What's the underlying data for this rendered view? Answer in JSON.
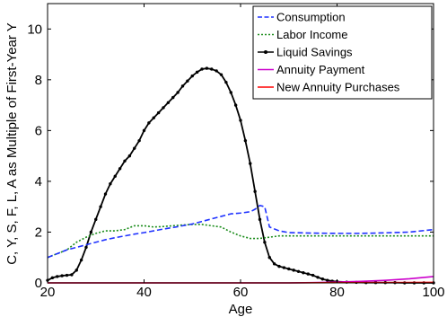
{
  "chart_data": {
    "type": "line",
    "xlabel": "Age",
    "ylabel": "C, Y, S, F, L, A as Multiple of First-Year Y",
    "xlim": [
      20,
      100
    ],
    "ylim": [
      0,
      11
    ],
    "xticks": [
      "20",
      "40",
      "60",
      "80",
      "100"
    ],
    "yticks": [
      "0",
      "2",
      "4",
      "6",
      "8",
      "10"
    ],
    "grid": false,
    "legend_position": "top-right",
    "series": [
      {
        "name": "Consumption",
        "color": "#1f32ff",
        "style": "dashed",
        "x": [
          20,
          22,
          24,
          26,
          28,
          30,
          32,
          34,
          36,
          38,
          40,
          42,
          44,
          46,
          48,
          50,
          52,
          54,
          56,
          58,
          60,
          62,
          63,
          64,
          65,
          66,
          68,
          70,
          75,
          80,
          85,
          90,
          95,
          100
        ],
        "y": [
          1.0,
          1.15,
          1.3,
          1.4,
          1.5,
          1.6,
          1.7,
          1.78,
          1.85,
          1.92,
          1.98,
          2.05,
          2.12,
          2.18,
          2.25,
          2.32,
          2.42,
          2.52,
          2.62,
          2.72,
          2.75,
          2.8,
          2.9,
          3.05,
          3.0,
          2.2,
          2.05,
          1.98,
          1.96,
          1.95,
          1.95,
          1.97,
          2.0,
          2.1
        ]
      },
      {
        "name": "Labor Income",
        "color": "#1a8c1a",
        "style": "dotted",
        "x": [
          20,
          22,
          24,
          26,
          28,
          30,
          32,
          34,
          36,
          38,
          40,
          42,
          44,
          46,
          48,
          50,
          52,
          54,
          56,
          58,
          60,
          62,
          64,
          66,
          68,
          70,
          75,
          80,
          85,
          90,
          95,
          100
        ],
        "y": [
          1.0,
          1.15,
          1.3,
          1.6,
          1.8,
          1.95,
          2.05,
          2.05,
          2.1,
          2.25,
          2.25,
          2.2,
          2.22,
          2.25,
          2.28,
          2.3,
          2.3,
          2.25,
          2.2,
          2.0,
          1.85,
          1.75,
          1.75,
          1.8,
          1.85,
          1.85,
          1.85,
          1.85,
          1.85,
          1.85,
          1.85,
          1.85
        ]
      },
      {
        "name": "Liquid Savings",
        "color": "#000000",
        "style": "solid-dot",
        "x": [
          20,
          21,
          22,
          23,
          24,
          25,
          26,
          27,
          28,
          29,
          30,
          31,
          32,
          33,
          34,
          35,
          36,
          37,
          38,
          39,
          40,
          41,
          42,
          43,
          44,
          45,
          46,
          47,
          48,
          49,
          50,
          51,
          52,
          53,
          54,
          55,
          56,
          57,
          58,
          59,
          60,
          61,
          62,
          63,
          64,
          65,
          66,
          67,
          68,
          69,
          70,
          71,
          72,
          73,
          74,
          75,
          76,
          77,
          78,
          79,
          80,
          82,
          84,
          86,
          88,
          90,
          92,
          94,
          96,
          98,
          100
        ],
        "y": [
          0.1,
          0.2,
          0.25,
          0.28,
          0.3,
          0.32,
          0.5,
          0.9,
          1.4,
          2.0,
          2.5,
          3.0,
          3.5,
          3.9,
          4.2,
          4.5,
          4.8,
          5.0,
          5.3,
          5.6,
          6.0,
          6.3,
          6.5,
          6.7,
          6.9,
          7.1,
          7.3,
          7.5,
          7.75,
          7.95,
          8.15,
          8.3,
          8.42,
          8.45,
          8.42,
          8.35,
          8.2,
          7.9,
          7.5,
          7.0,
          6.4,
          5.6,
          4.7,
          3.6,
          2.5,
          1.6,
          1.0,
          0.75,
          0.65,
          0.6,
          0.55,
          0.5,
          0.45,
          0.4,
          0.35,
          0.3,
          0.22,
          0.15,
          0.1,
          0.07,
          0.05,
          0.03,
          0.02,
          0.01,
          0.01,
          0.01,
          0.01,
          0.0,
          0.0,
          0.0,
          0.0
        ]
      },
      {
        "name": "Annuity Payment",
        "color": "#cc00cc",
        "style": "solid",
        "x": [
          20,
          60,
          70,
          75,
          80,
          85,
          90,
          95,
          100
        ],
        "y": [
          0.0,
          0.0,
          0.0,
          0.01,
          0.03,
          0.06,
          0.1,
          0.16,
          0.25
        ]
      },
      {
        "name": "New Annuity Purchases",
        "color": "#ff0000",
        "style": "solid",
        "x": [
          20,
          60,
          70,
          80,
          90,
          100
        ],
        "y": [
          0.0,
          0.0,
          0.0,
          0.01,
          0.01,
          0.02
        ]
      }
    ]
  }
}
